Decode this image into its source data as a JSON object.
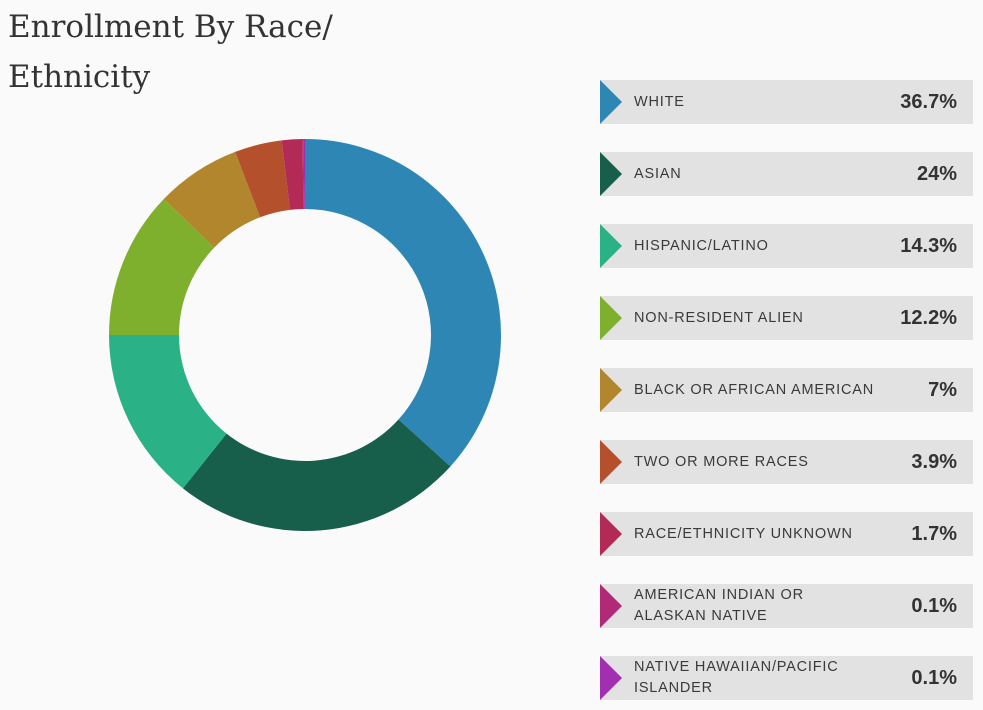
{
  "page": {
    "title": "Enrollment By Race/ Ethnicity"
  },
  "chart_data": {
    "type": "pie",
    "title": "Enrollment By Race/ Ethnicity",
    "variant": "donut",
    "slices": [
      {
        "label": "WHITE",
        "value": 36.7,
        "value_label": "36.7%",
        "color": "#2e86b4"
      },
      {
        "label": "ASIAN",
        "value": 24,
        "value_label": "24%",
        "color": "#175e4b"
      },
      {
        "label": "HISPANIC/LATINO",
        "value": 14.3,
        "value_label": "14.3%",
        "color": "#2bb186"
      },
      {
        "label": "NON-RESIDENT ALIEN",
        "value": 12.2,
        "value_label": "12.2%",
        "color": "#7fb02d"
      },
      {
        "label": "BLACK OR AFRICAN AMERICAN",
        "value": 7,
        "value_label": "7%",
        "color": "#b2862d"
      },
      {
        "label": "TWO OR MORE RACES",
        "value": 3.9,
        "value_label": "3.9%",
        "color": "#b4512c"
      },
      {
        "label": "RACE/ETHNICITY UNKNOWN",
        "value": 1.7,
        "value_label": "1.7%",
        "color": "#b42a56"
      },
      {
        "label": "AMERICAN INDIAN OR ALASKAN NATIVE",
        "value": 0.1,
        "value_label": "0.1%",
        "color": "#b12a78"
      },
      {
        "label": "NATIVE HAWAIIAN/PACIFIC ISLANDER",
        "value": 0.1,
        "value_label": "0.1%",
        "color": "#a22eb2"
      }
    ],
    "legend": "right"
  }
}
